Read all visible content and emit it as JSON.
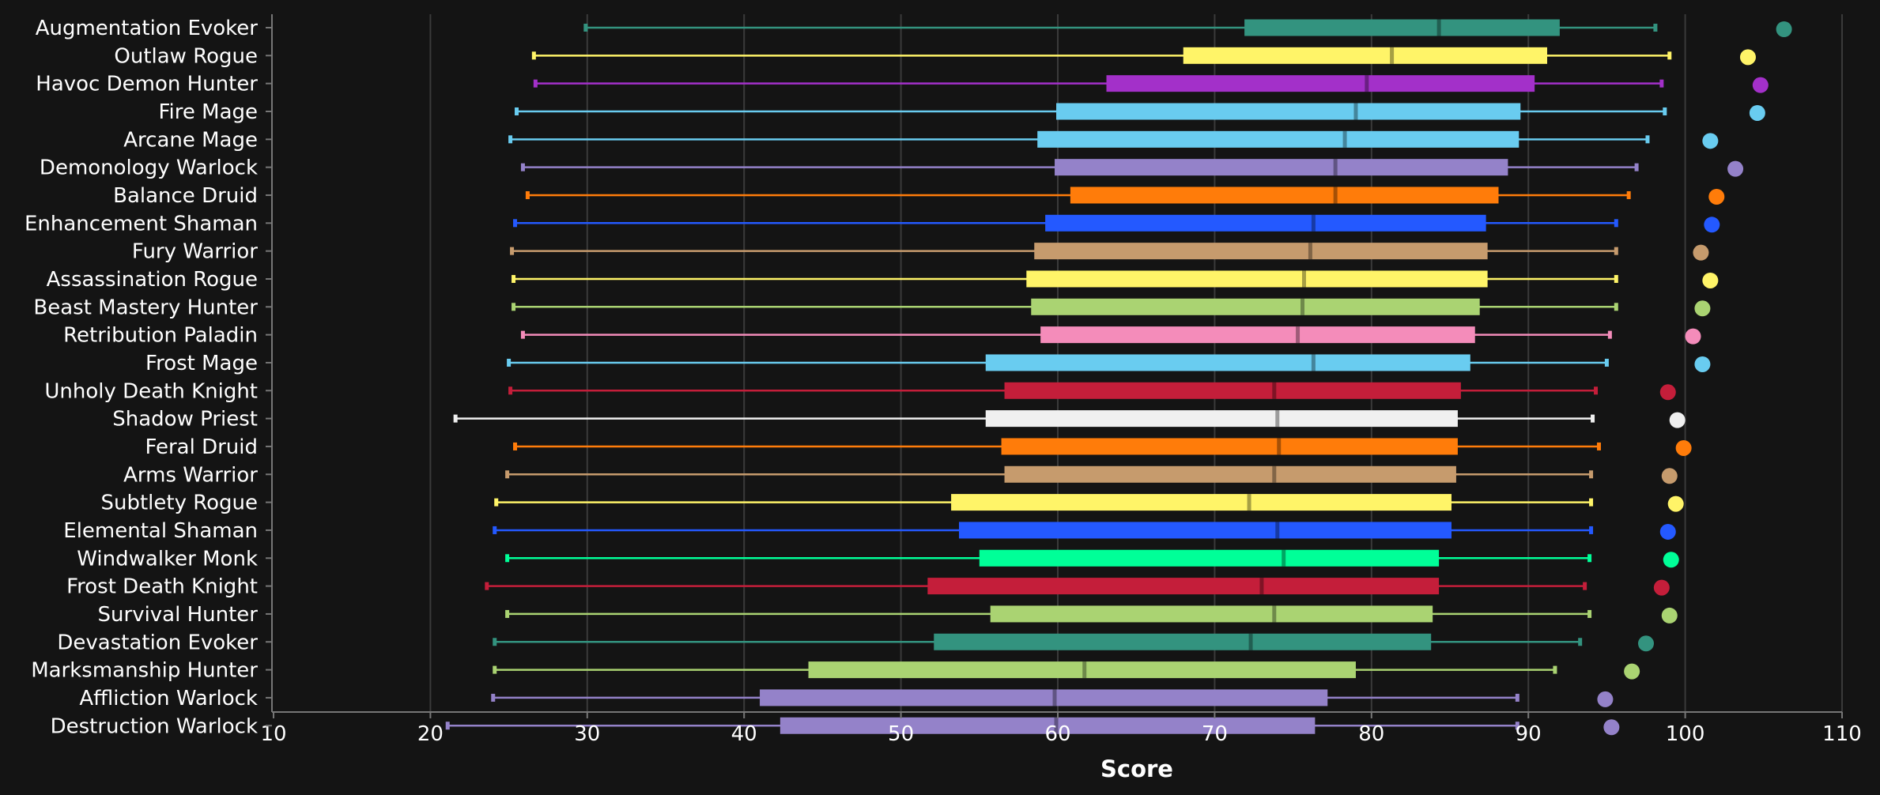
{
  "chart_data": {
    "type": "boxplot",
    "title": "",
    "xlabel": "Score",
    "ylabel": "",
    "xlim": [
      10,
      110
    ],
    "xticks": [
      10,
      20,
      30,
      40,
      50,
      60,
      70,
      80,
      90,
      100,
      110
    ],
    "grid": true,
    "series": [
      {
        "name": "Augmentation Evoker",
        "color": "#33937f",
        "min": 29.9,
        "q1": 71.9,
        "median": 84.3,
        "q3": 92.0,
        "max": 98.1,
        "max_point": 106.3
      },
      {
        "name": "Outlaw Rogue",
        "color": "#fff468",
        "min": 26.6,
        "q1": 68.0,
        "median": 81.3,
        "q3": 91.2,
        "max": 99.0,
        "max_point": 104.0
      },
      {
        "name": "Havoc Demon Hunter",
        "color": "#a330c9",
        "min": 26.7,
        "q1": 63.1,
        "median": 79.7,
        "q3": 90.4,
        "max": 98.5,
        "max_point": 104.8
      },
      {
        "name": "Fire Mage",
        "color": "#69ccf0",
        "min": 25.5,
        "q1": 59.9,
        "median": 79.0,
        "q3": 89.5,
        "max": 98.7,
        "max_point": 104.6
      },
      {
        "name": "Arcane Mage",
        "color": "#69ccf0",
        "min": 25.1,
        "q1": 58.7,
        "median": 78.3,
        "q3": 89.4,
        "max": 97.6,
        "max_point": 101.6
      },
      {
        "name": "Demonology Warlock",
        "color": "#9482c9",
        "min": 25.9,
        "q1": 59.8,
        "median": 77.7,
        "q3": 88.7,
        "max": 96.9,
        "max_point": 103.2
      },
      {
        "name": "Balance Druid",
        "color": "#ff7c0a",
        "min": 26.2,
        "q1": 60.8,
        "median": 77.7,
        "q3": 88.1,
        "max": 96.4,
        "max_point": 102.0
      },
      {
        "name": "Enhancement Shaman",
        "color": "#2459ff",
        "min": 25.4,
        "q1": 59.2,
        "median": 76.3,
        "q3": 87.3,
        "max": 95.6,
        "max_point": 101.7
      },
      {
        "name": "Fury Warrior",
        "color": "#c69b6d",
        "min": 25.2,
        "q1": 58.5,
        "median": 76.1,
        "q3": 87.4,
        "max": 95.6,
        "max_point": 101.0
      },
      {
        "name": "Assassination Rogue",
        "color": "#fff468",
        "min": 25.3,
        "q1": 58.0,
        "median": 75.7,
        "q3": 87.4,
        "max": 95.6,
        "max_point": 101.6
      },
      {
        "name": "Beast Mastery Hunter",
        "color": "#aad372",
        "min": 25.3,
        "q1": 58.3,
        "median": 75.6,
        "q3": 86.9,
        "max": 95.6,
        "max_point": 101.1
      },
      {
        "name": "Retribution Paladin",
        "color": "#f48cba",
        "min": 25.9,
        "q1": 58.9,
        "median": 75.3,
        "q3": 86.6,
        "max": 95.2,
        "max_point": 100.5
      },
      {
        "name": "Frost Mage",
        "color": "#69ccf0",
        "min": 25.0,
        "q1": 55.4,
        "median": 76.3,
        "q3": 86.3,
        "max": 95.0,
        "max_point": 101.1
      },
      {
        "name": "Unholy Death Knight",
        "color": "#c41e3a",
        "min": 25.1,
        "q1": 56.6,
        "median": 73.8,
        "q3": 85.7,
        "max": 94.3,
        "max_point": 98.9
      },
      {
        "name": "Shadow Priest",
        "color": "#f0f0f0",
        "min": 21.6,
        "q1": 55.4,
        "median": 74.0,
        "q3": 85.5,
        "max": 94.1,
        "max_point": 99.5
      },
      {
        "name": "Feral Druid",
        "color": "#ff7c0a",
        "min": 25.4,
        "q1": 56.4,
        "median": 74.1,
        "q3": 85.5,
        "max": 94.5,
        "max_point": 99.9
      },
      {
        "name": "Arms Warrior",
        "color": "#c69b6d",
        "min": 24.9,
        "q1": 56.6,
        "median": 73.8,
        "q3": 85.4,
        "max": 94.0,
        "max_point": 99.0
      },
      {
        "name": "Subtlety Rogue",
        "color": "#fff468",
        "min": 24.2,
        "q1": 53.2,
        "median": 72.2,
        "q3": 85.1,
        "max": 94.0,
        "max_point": 99.4
      },
      {
        "name": "Elemental Shaman",
        "color": "#2459ff",
        "min": 24.1,
        "q1": 53.7,
        "median": 74.0,
        "q3": 85.1,
        "max": 94.0,
        "max_point": 98.9
      },
      {
        "name": "Windwalker Monk",
        "color": "#00ff98",
        "min": 24.9,
        "q1": 55.0,
        "median": 74.4,
        "q3": 84.3,
        "max": 93.9,
        "max_point": 99.1
      },
      {
        "name": "Frost Death Knight",
        "color": "#c41e3a",
        "min": 23.6,
        "q1": 51.7,
        "median": 73.0,
        "q3": 84.3,
        "max": 93.6,
        "max_point": 98.5
      },
      {
        "name": "Survival Hunter",
        "color": "#aad372",
        "min": 24.9,
        "q1": 55.7,
        "median": 73.8,
        "q3": 83.9,
        "max": 93.9,
        "max_point": 99.0
      },
      {
        "name": "Devastation Evoker",
        "color": "#33937f",
        "min": 24.1,
        "q1": 52.1,
        "median": 72.3,
        "q3": 83.8,
        "max": 93.3,
        "max_point": 97.5
      },
      {
        "name": "Marksmanship Hunter",
        "color": "#aad372",
        "min": 24.1,
        "q1": 44.1,
        "median": 61.7,
        "q3": 79.0,
        "max": 91.7,
        "max_point": 96.6
      },
      {
        "name": "Affliction Warlock",
        "color": "#9482c9",
        "min": 24.0,
        "q1": 41.0,
        "median": 59.8,
        "q3": 77.2,
        "max": 89.3,
        "max_point": 94.9
      },
      {
        "name": "Destruction Warlock",
        "color": "#9482c9",
        "min": 21.1,
        "q1": 42.3,
        "median": 59.9,
        "q3": 76.4,
        "max": 89.3,
        "max_point": 95.3
      }
    ]
  }
}
